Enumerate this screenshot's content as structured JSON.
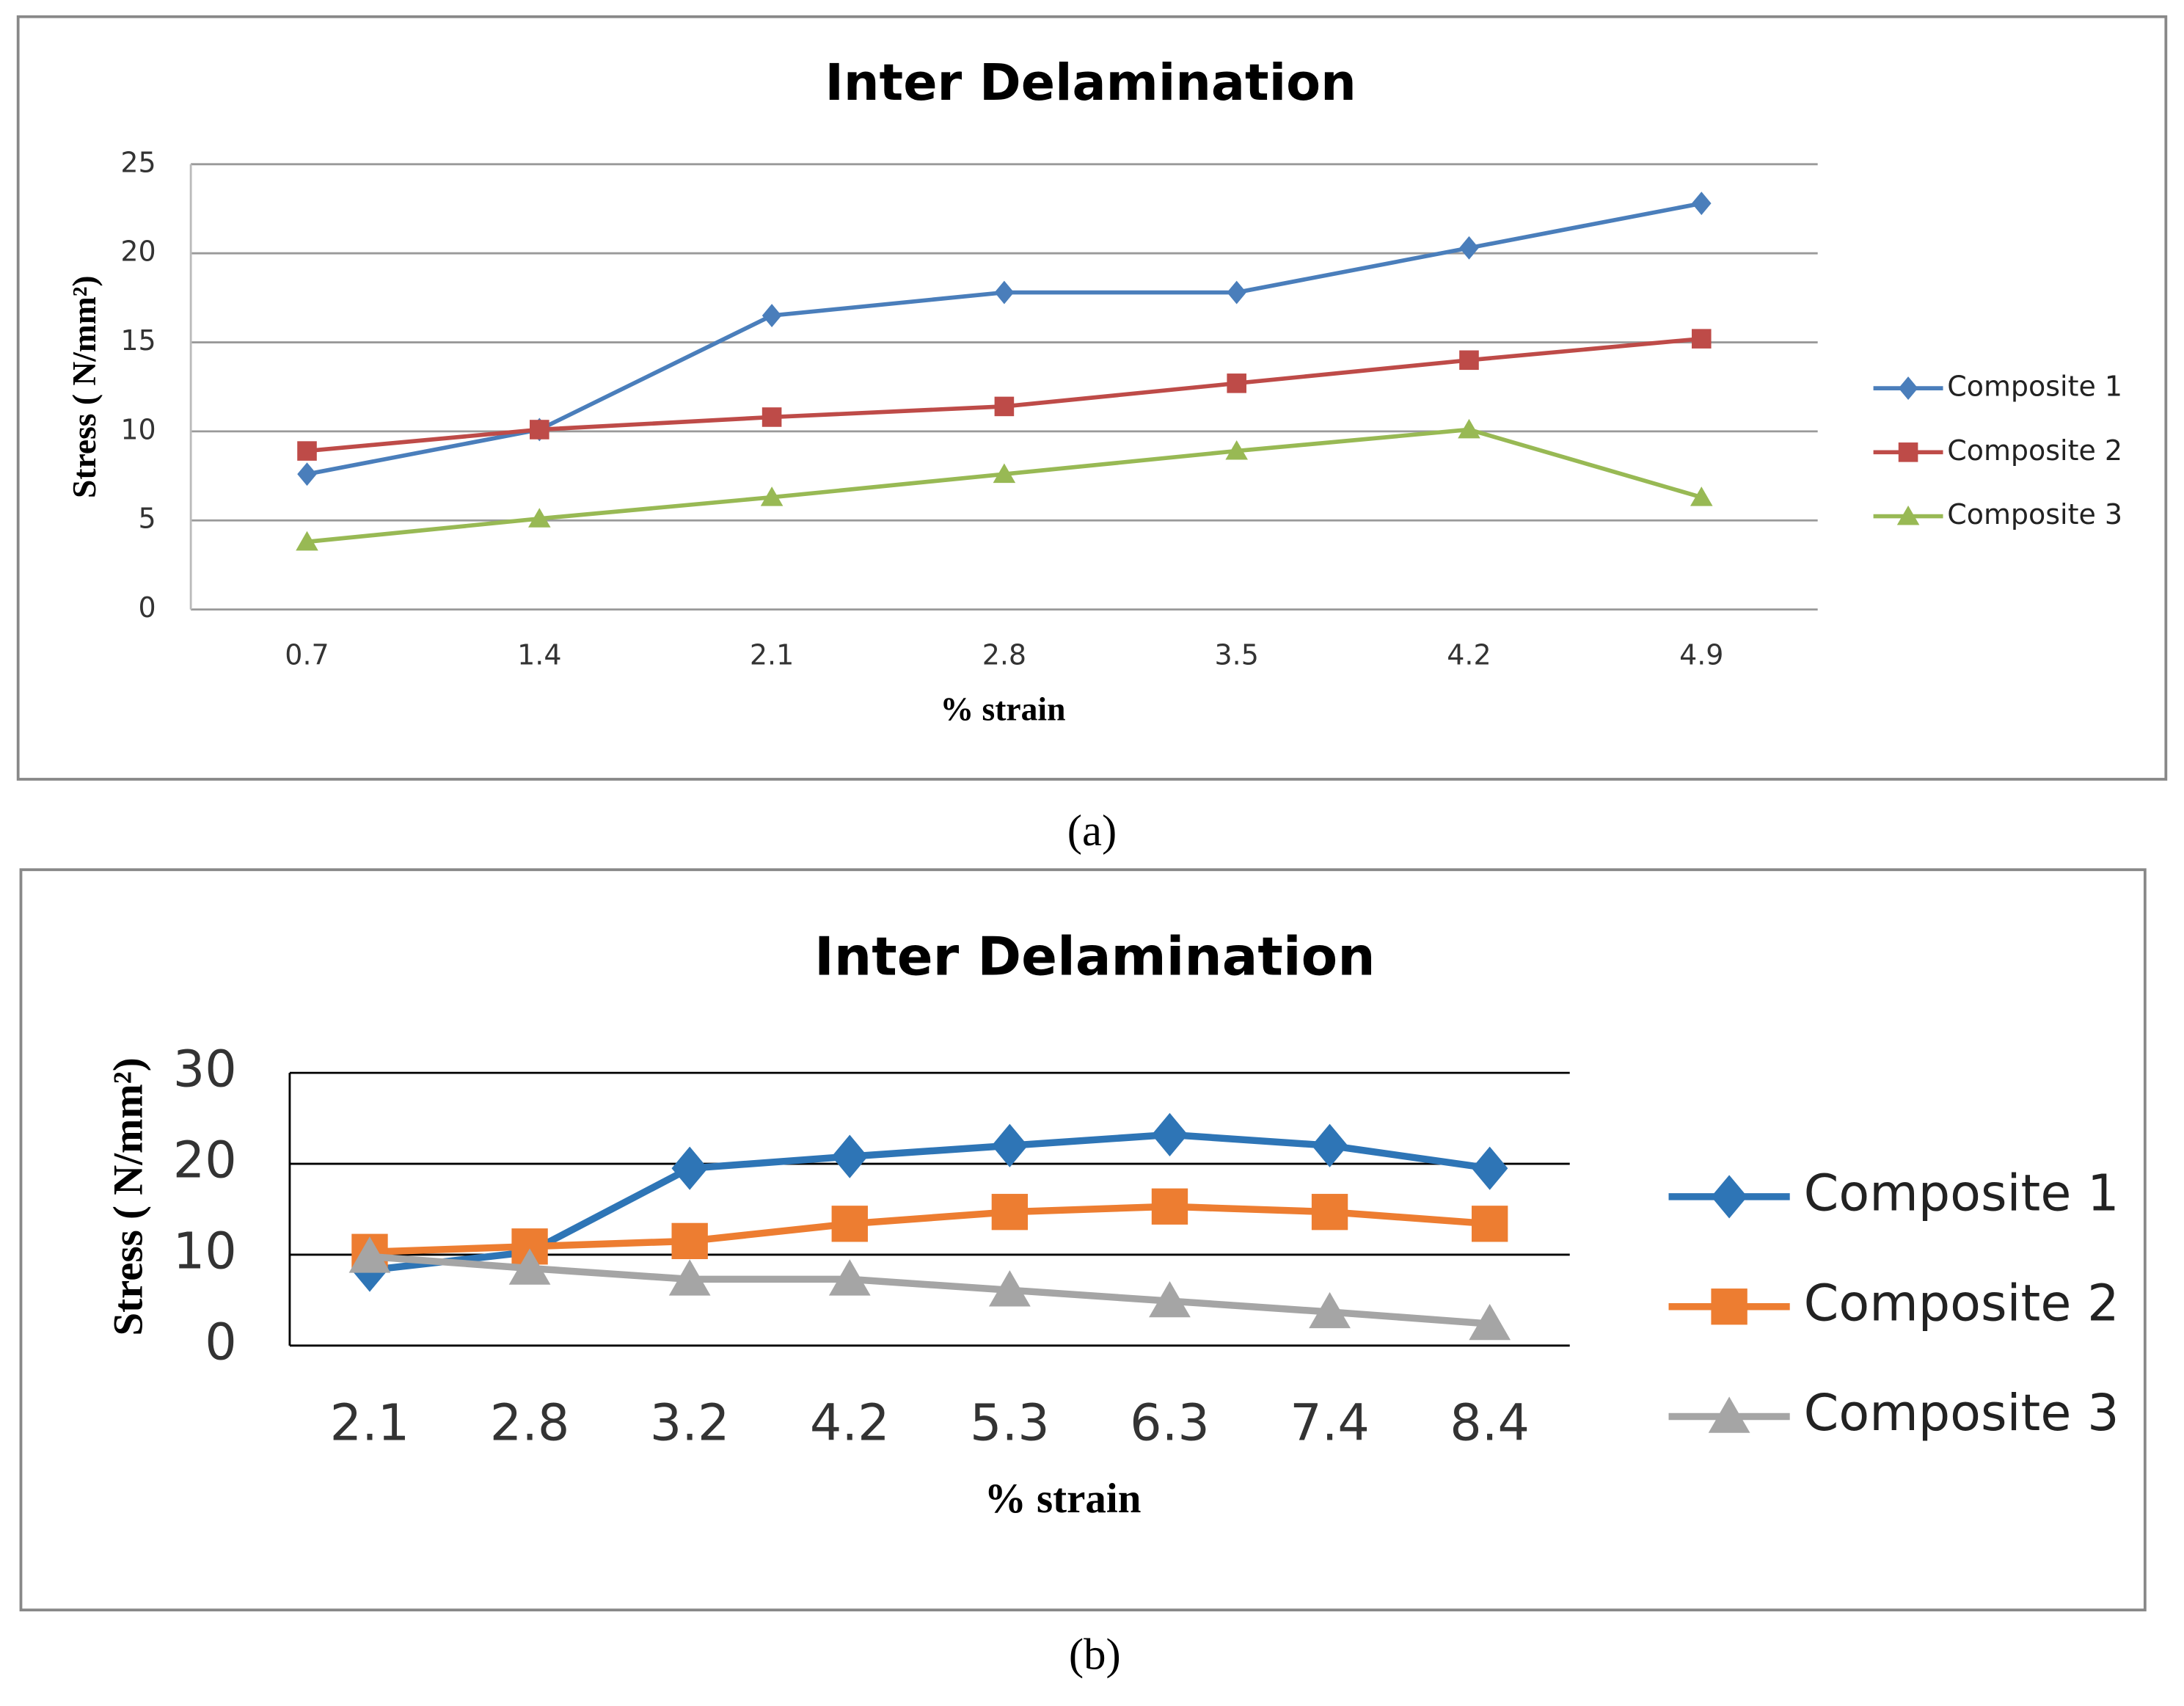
{
  "chart_data": [
    {
      "type": "line",
      "label": "(a)",
      "title": "Inter Delamination",
      "x_label": "% strain",
      "y_label": "Stress ( N/mm²)",
      "categories": [
        "0.7",
        "1.4",
        "2.1",
        "2.8",
        "3.5",
        "4.2",
        "4.9"
      ],
      "series": [
        {
          "name": "Composite 1",
          "color": "#4a7ebb",
          "marker": "diamond",
          "values": [
            7.6,
            10.1,
            16.5,
            17.8,
            17.8,
            20.3,
            22.8
          ]
        },
        {
          "name": "Composite 2",
          "color": "#be4b48",
          "marker": "square",
          "values": [
            8.9,
            10.1,
            10.8,
            11.4,
            12.7,
            14.0,
            15.2
          ]
        },
        {
          "name": "Composite 3",
          "color": "#98b954",
          "marker": "triangle",
          "values": [
            3.8,
            5.1,
            6.3,
            7.6,
            8.9,
            10.1,
            6.3
          ]
        }
      ],
      "ylim": [
        0,
        25
      ],
      "yticks": [
        0,
        5,
        10,
        15,
        20,
        25
      ],
      "grid": true,
      "legend": "right"
    },
    {
      "type": "line",
      "label": "(b)",
      "title": "Inter Delamination",
      "x_label": "% strain",
      "y_label": "Stress ( N/mm²)",
      "categories": [
        "2.1",
        "2.8",
        "3.2",
        "4.2",
        "5.3",
        "6.3",
        "7.4",
        "8.4"
      ],
      "series": [
        {
          "name": "Composite 1",
          "color": "#2e75b6",
          "marker": "diamond",
          "values": [
            8.3,
            10.3,
            19.5,
            20.8,
            22.0,
            23.2,
            22.0,
            19.5
          ]
        },
        {
          "name": "Composite 2",
          "color": "#ed7d31",
          "marker": "square",
          "values": [
            10.3,
            10.9,
            11.5,
            13.4,
            14.7,
            15.3,
            14.7,
            13.4
          ]
        },
        {
          "name": "Composite 3",
          "color": "#a5a5a5",
          "marker": "triangle",
          "values": [
            9.8,
            8.5,
            7.3,
            7.3,
            6.1,
            4.9,
            3.7,
            2.4
          ]
        }
      ],
      "ylim": [
        0,
        30
      ],
      "yticks": [
        0,
        10,
        20,
        30
      ],
      "grid": true,
      "legend": "right"
    }
  ]
}
